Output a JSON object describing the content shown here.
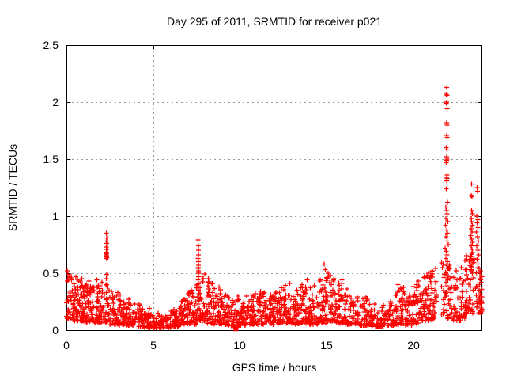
{
  "window": {
    "background": "#ffffff"
  },
  "chart_data": {
    "type": "scatter",
    "title": "Day 295 of 2011, SRMTID for receiver p021",
    "xlabel": "GPS time / hours",
    "ylabel": "SRMTID / TECUs",
    "xlim": [
      0,
      24
    ],
    "ylim": [
      0,
      2.5
    ],
    "xticks": [
      0,
      5,
      10,
      15,
      20
    ],
    "xtick_labels": [
      "0",
      "5",
      "10",
      "15",
      "20"
    ],
    "yticks": [
      0,
      0.5,
      1,
      1.5,
      2,
      2.5
    ],
    "ytick_labels": [
      "0",
      "0.5",
      "1",
      "1.5",
      "2",
      "2.5"
    ],
    "grid": true,
    "legend": "none",
    "marker": "plus",
    "marker_color": "#ff0000",
    "grid_color": "#9a9a9a",
    "axis_color": "#000000",
    "square_point": [
      9.77,
      0.012
    ],
    "points": [
      [
        0.05,
        0.52
      ],
      [
        0.1,
        0.49
      ],
      [
        0.18,
        0.46
      ],
      [
        0.3,
        0.44
      ],
      [
        0.55,
        0.47
      ],
      [
        0.9,
        0.45
      ],
      [
        1.3,
        0.43
      ],
      [
        1.75,
        0.44
      ],
      [
        2.05,
        0.42
      ],
      [
        2.6,
        0.34
      ],
      [
        3.1,
        0.31
      ],
      [
        3.6,
        0.27
      ],
      [
        4.2,
        0.23
      ],
      [
        4.8,
        0.19
      ],
      [
        5.3,
        0.15
      ],
      [
        6.2,
        0.18
      ],
      [
        6.8,
        0.27
      ],
      [
        7.2,
        0.35
      ],
      [
        8.2,
        0.45
      ],
      [
        8.45,
        0.41
      ],
      [
        8.8,
        0.38
      ],
      [
        9.2,
        0.31
      ],
      [
        9.9,
        0.3
      ],
      [
        10.4,
        0.3
      ],
      [
        10.9,
        0.32
      ],
      [
        11.2,
        0.34
      ],
      [
        11.8,
        0.31
      ],
      [
        12.4,
        0.37
      ],
      [
        12.9,
        0.41
      ],
      [
        13.3,
        0.35
      ],
      [
        13.6,
        0.4
      ],
      [
        13.9,
        0.44
      ],
      [
        14.3,
        0.39
      ],
      [
        14.65,
        0.44
      ],
      [
        14.88,
        0.58
      ],
      [
        14.95,
        0.53
      ],
      [
        15.1,
        0.5
      ],
      [
        15.25,
        0.48
      ],
      [
        15.45,
        0.45
      ],
      [
        15.9,
        0.44
      ],
      [
        16.2,
        0.36
      ],
      [
        16.8,
        0.29
      ],
      [
        17.3,
        0.29
      ],
      [
        17.8,
        0.23
      ],
      [
        18.3,
        0.22
      ],
      [
        18.7,
        0.25
      ],
      [
        19.15,
        0.4
      ],
      [
        19.35,
        0.36
      ],
      [
        19.8,
        0.31
      ],
      [
        20.3,
        0.43
      ],
      [
        20.7,
        0.46
      ],
      [
        20.9,
        0.5
      ],
      [
        21.1,
        0.52
      ],
      [
        21.3,
        0.54
      ],
      [
        21.75,
        0.58
      ],
      [
        22.1,
        0.57
      ],
      [
        22.5,
        0.52
      ],
      [
        22.8,
        0.55
      ],
      [
        23.1,
        0.62
      ],
      [
        23.9,
        0.52
      ],
      [
        23.97,
        0.47
      ],
      [
        2.3,
        0.85
      ],
      [
        2.32,
        0.81
      ],
      [
        2.31,
        0.78
      ],
      [
        2.33,
        0.76
      ],
      [
        2.3,
        0.73
      ],
      [
        2.32,
        0.71
      ],
      [
        2.31,
        0.685
      ],
      [
        2.33,
        0.67
      ],
      [
        2.3,
        0.66
      ],
      [
        2.32,
        0.65
      ],
      [
        2.34,
        0.64
      ],
      [
        2.31,
        0.63
      ],
      [
        2.33,
        0.49
      ],
      [
        2.3,
        0.45
      ],
      [
        2.32,
        0.4
      ],
      [
        2.31,
        0.33
      ],
      [
        2.33,
        0.27
      ],
      [
        7.6,
        0.79
      ],
      [
        7.62,
        0.74
      ],
      [
        7.61,
        0.7
      ],
      [
        7.63,
        0.66
      ],
      [
        7.6,
        0.63
      ],
      [
        7.62,
        0.6
      ],
      [
        7.61,
        0.57
      ],
      [
        7.63,
        0.55
      ],
      [
        7.6,
        0.54
      ],
      [
        7.62,
        0.52
      ],
      [
        7.64,
        0.51
      ],
      [
        7.61,
        0.5
      ],
      [
        7.63,
        0.47
      ],
      [
        7.6,
        0.44
      ],
      [
        7.62,
        0.41
      ],
      [
        7.61,
        0.38
      ],
      [
        7.63,
        0.35
      ],
      [
        7.65,
        0.32
      ],
      [
        7.59,
        0.29
      ],
      [
        7.64,
        0.26
      ],
      [
        8.18,
        0.45
      ],
      [
        8.2,
        0.42
      ],
      [
        8.17,
        0.39
      ],
      [
        8.21,
        0.36
      ],
      [
        8.19,
        0.33
      ],
      [
        8.22,
        0.3
      ],
      [
        21.95,
        2.13
      ],
      [
        21.93,
        2.07
      ],
      [
        21.97,
        2.06
      ],
      [
        21.95,
        2.0
      ],
      [
        21.92,
        1.99
      ],
      [
        21.96,
        1.94
      ],
      [
        21.94,
        1.82
      ],
      [
        21.98,
        1.8
      ],
      [
        21.95,
        1.71
      ],
      [
        21.97,
        1.69
      ],
      [
        21.93,
        1.6
      ],
      [
        21.96,
        1.58
      ],
      [
        21.94,
        1.52
      ],
      [
        21.97,
        1.5
      ],
      [
        21.95,
        1.49
      ],
      [
        21.92,
        1.47
      ],
      [
        21.96,
        1.36
      ],
      [
        21.94,
        1.34
      ],
      [
        21.98,
        1.33
      ],
      [
        21.95,
        1.31
      ],
      [
        21.93,
        1.24
      ],
      [
        22.0,
        1.12
      ],
      [
        21.9,
        1.08
      ],
      [
        21.95,
        1.05
      ],
      [
        21.97,
        1.02
      ],
      [
        21.9,
        0.98
      ],
      [
        22.02,
        0.95
      ],
      [
        21.88,
        0.92
      ],
      [
        21.94,
        0.88
      ],
      [
        22.0,
        0.85
      ],
      [
        21.9,
        0.82
      ],
      [
        21.96,
        0.78
      ],
      [
        22.04,
        0.75
      ],
      [
        21.86,
        0.72
      ],
      [
        21.92,
        0.69
      ],
      [
        21.98,
        0.66
      ],
      [
        21.9,
        0.63
      ],
      [
        22.0,
        0.6
      ],
      [
        21.94,
        0.57
      ],
      [
        22.06,
        0.54
      ],
      [
        21.88,
        0.51
      ],
      [
        21.96,
        0.48
      ],
      [
        22.02,
        0.45
      ],
      [
        21.9,
        0.42
      ],
      [
        21.98,
        0.39
      ],
      [
        22.08,
        0.36
      ],
      [
        21.86,
        0.33
      ],
      [
        21.94,
        0.3
      ],
      [
        23.38,
        1.28
      ],
      [
        23.36,
        1.18
      ],
      [
        23.4,
        1.17
      ],
      [
        23.38,
        1.05
      ],
      [
        23.42,
        1.02
      ],
      [
        23.35,
        0.98
      ],
      [
        23.39,
        0.95
      ],
      [
        23.43,
        0.92
      ],
      [
        23.37,
        0.89
      ],
      [
        23.41,
        0.86
      ],
      [
        23.34,
        0.83
      ],
      [
        23.38,
        0.8
      ],
      [
        23.42,
        0.77
      ],
      [
        23.36,
        0.74
      ],
      [
        23.4,
        0.71
      ],
      [
        23.44,
        0.68
      ],
      [
        23.33,
        0.65
      ],
      [
        23.37,
        0.62
      ],
      [
        23.45,
        0.59
      ],
      [
        23.39,
        0.56
      ],
      [
        23.35,
        0.53
      ],
      [
        23.43,
        0.5
      ],
      [
        23.7,
        1.25
      ],
      [
        23.72,
        1.22
      ],
      [
        23.68,
        1.0
      ],
      [
        23.74,
        0.97
      ],
      [
        23.7,
        0.94
      ],
      [
        23.76,
        0.9
      ],
      [
        23.66,
        0.86
      ],
      [
        23.72,
        0.82
      ],
      [
        23.78,
        0.78
      ],
      [
        23.68,
        0.74
      ],
      [
        23.74,
        0.7
      ],
      [
        23.8,
        0.66
      ],
      [
        23.7,
        0.62
      ],
      [
        23.76,
        0.58
      ],
      [
        23.82,
        0.54
      ],
      [
        23.86,
        0.5
      ]
    ],
    "bands_format": "[x_start, x_end, y_min, y_max, n_points] — dense low-value scatter band read from plot",
    "bands": [
      [
        0.0,
        0.3,
        0.1,
        0.5,
        28
      ],
      [
        0.3,
        0.7,
        0.08,
        0.47,
        45
      ],
      [
        0.7,
        1.1,
        0.08,
        0.44,
        48
      ],
      [
        1.1,
        1.5,
        0.07,
        0.42,
        46
      ],
      [
        1.5,
        2.0,
        0.06,
        0.42,
        48
      ],
      [
        2.0,
        2.5,
        0.07,
        0.4,
        40
      ],
      [
        2.5,
        3.0,
        0.05,
        0.33,
        42
      ],
      [
        3.0,
        3.5,
        0.04,
        0.3,
        42
      ],
      [
        3.5,
        4.0,
        0.04,
        0.26,
        40
      ],
      [
        4.0,
        4.5,
        0.03,
        0.22,
        40
      ],
      [
        4.5,
        5.0,
        0.02,
        0.18,
        38
      ],
      [
        5.0,
        5.5,
        0.02,
        0.14,
        38
      ],
      [
        5.5,
        6.0,
        0.02,
        0.13,
        36
      ],
      [
        6.0,
        6.5,
        0.03,
        0.17,
        38
      ],
      [
        6.5,
        7.0,
        0.04,
        0.26,
        42
      ],
      [
        7.0,
        7.5,
        0.05,
        0.34,
        44
      ],
      [
        7.5,
        8.0,
        0.08,
        0.5,
        46
      ],
      [
        8.0,
        8.5,
        0.06,
        0.44,
        44
      ],
      [
        8.5,
        9.0,
        0.05,
        0.37,
        42
      ],
      [
        9.0,
        9.5,
        0.04,
        0.3,
        40
      ],
      [
        9.5,
        10.0,
        0.03,
        0.27,
        38
      ],
      [
        10.0,
        10.5,
        0.04,
        0.29,
        40
      ],
      [
        10.5,
        11.0,
        0.05,
        0.31,
        42
      ],
      [
        11.0,
        11.5,
        0.05,
        0.33,
        42
      ],
      [
        11.5,
        12.0,
        0.05,
        0.3,
        40
      ],
      [
        12.0,
        12.5,
        0.06,
        0.36,
        42
      ],
      [
        12.5,
        13.0,
        0.06,
        0.4,
        42
      ],
      [
        13.0,
        13.5,
        0.05,
        0.34,
        40
      ],
      [
        13.5,
        14.0,
        0.06,
        0.42,
        42
      ],
      [
        14.0,
        14.5,
        0.05,
        0.38,
        40
      ],
      [
        14.5,
        15.0,
        0.06,
        0.47,
        42
      ],
      [
        15.0,
        15.5,
        0.08,
        0.48,
        42
      ],
      [
        15.5,
        16.0,
        0.06,
        0.42,
        40
      ],
      [
        16.0,
        16.5,
        0.05,
        0.34,
        38
      ],
      [
        16.5,
        17.0,
        0.04,
        0.28,
        30
      ],
      [
        17.0,
        17.5,
        0.04,
        0.28,
        38
      ],
      [
        17.5,
        18.0,
        0.03,
        0.22,
        36
      ],
      [
        18.0,
        18.5,
        0.03,
        0.21,
        36
      ],
      [
        18.5,
        19.0,
        0.04,
        0.24,
        38
      ],
      [
        19.0,
        19.5,
        0.05,
        0.38,
        40
      ],
      [
        19.5,
        20.0,
        0.04,
        0.3,
        34
      ],
      [
        20.0,
        20.5,
        0.06,
        0.42,
        40
      ],
      [
        20.5,
        21.0,
        0.08,
        0.48,
        40
      ],
      [
        21.0,
        21.4,
        0.08,
        0.52,
        34
      ],
      [
        21.6,
        22.3,
        0.1,
        0.6,
        40
      ],
      [
        22.3,
        23.0,
        0.08,
        0.55,
        44
      ],
      [
        23.0,
        23.6,
        0.15,
        0.68,
        46
      ],
      [
        23.6,
        24.0,
        0.15,
        0.55,
        40
      ]
    ]
  }
}
